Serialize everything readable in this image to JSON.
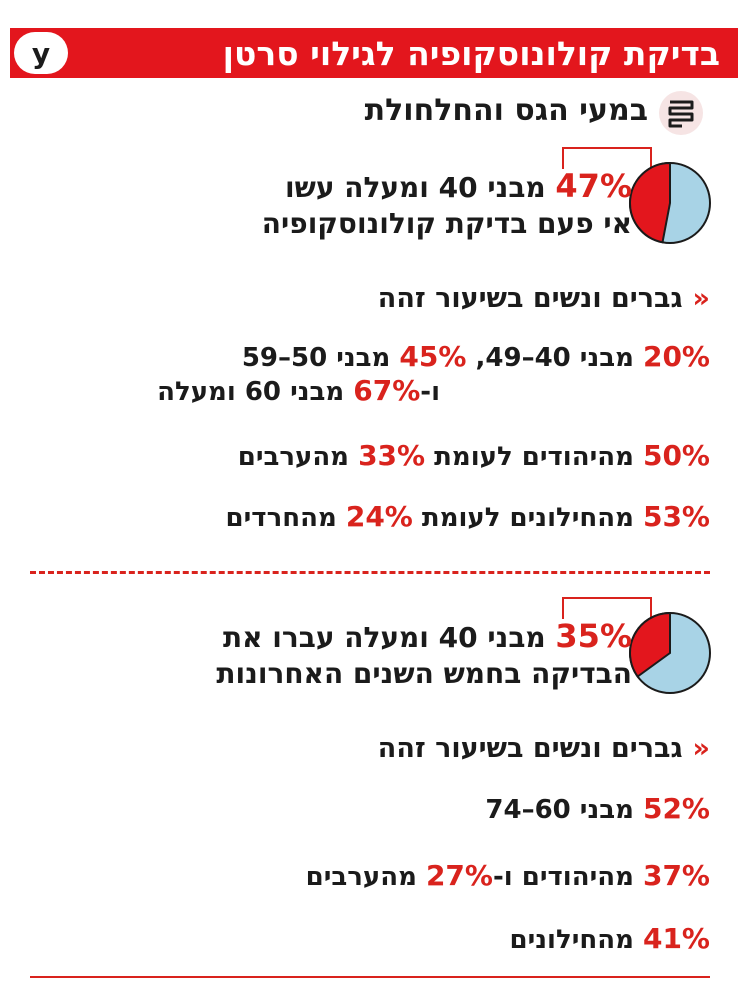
{
  "header": {
    "title": "בדיקת קולונוסקופיה לגילוי סרטן",
    "logo": "y"
  },
  "subtitle": "במעי הגס והחלחולת",
  "section1": {
    "stat_pct": "47%",
    "stat_line1": " מבני 40 ומעלה עשו",
    "stat_line2": "אי פעם בדיקת קולונוסקופיה",
    "subhead_arrow": "«",
    "subhead": "גברים ונשים בשיעור זהה",
    "age_line1": {
      "p1": "20%",
      "t1": " מבני 40–49, ",
      "p2": "45%",
      "t2": " מבני 50–59"
    },
    "age_line2": {
      "t0": "ו-",
      "p1": "67%",
      "t1": " מבני 60 ומעלה"
    },
    "line3": {
      "p1": "50%",
      "t1": " מהיהודים לעומת ",
      "p2": "33%",
      "t2": " מהערבים"
    },
    "line4": {
      "p1": "53%",
      "t1": " מהחילונים לעומת ",
      "p2": "24%",
      "t2": " מהחרדים"
    }
  },
  "section2": {
    "stat_pct": "35%",
    "stat_line1": " מבני 40 ומעלה עברו את",
    "stat_line2": "הבדיקה בחמש השנים האחרונות",
    "subhead_arrow": "«",
    "subhead": "גברים ונשים בשיעור זהה",
    "line1": {
      "p1": "52%",
      "t1": " מבני 60–74"
    },
    "line2": {
      "p1": "37%",
      "t1": " מהיהודים ו-",
      "p2": "27%",
      "t2": " מהערבים"
    },
    "line3": {
      "p1": "41%",
      "t1": " מהחילונים"
    }
  },
  "colors": {
    "accent": "#d9231d",
    "pie_rest": "#a8d3e6",
    "header": "#e3161d"
  },
  "chart_data": [
    {
      "type": "pie",
      "slices": [
        {
          "label": "47%",
          "value": 47
        },
        {
          "value": 53
        }
      ]
    },
    {
      "type": "pie",
      "slices": [
        {
          "label": "35%",
          "value": 35
        },
        {
          "value": 65
        }
      ]
    }
  ]
}
